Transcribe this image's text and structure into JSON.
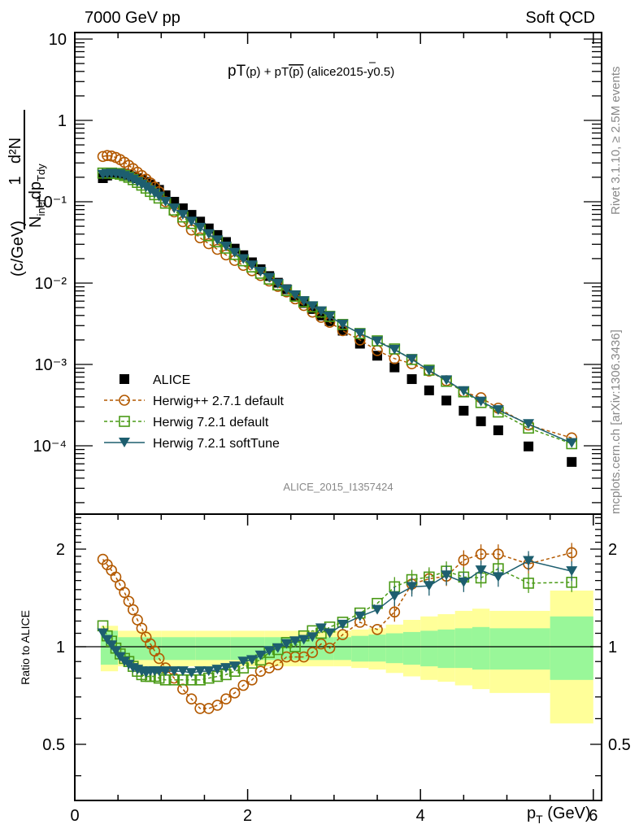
{
  "header": {
    "left": "7000 GeV pp",
    "right": "Soft QCD"
  },
  "side_labels": {
    "rivet": "Rivet 3.1.10, ≥ 2.5M events",
    "mcplots": "mcplots.cern.ch [arXiv:1306.3436]"
  },
  "chart_data": [
    {
      "type": "scatter",
      "panel": "main",
      "title": "pT(p) + pT(p̅) (alice2015-y0.5)",
      "title_parts": {
        "a": "pT",
        "b": "(p)",
        "c": " + pT",
        "d": "(p)",
        "e": " (alice2015-y0.5)"
      },
      "analysis_id": "ALICE_2015_I1357424",
      "xlabel": "p_T (GeV)",
      "ylabel": "1/N_inel d²N/dp_T dy (c/GeV)",
      "ylabel_parts": {
        "num1": "1",
        "num2": "d²N",
        "den1": "N",
        "den_sub": "inel",
        "den2": "dp",
        "den_sub2": "Tdy",
        "unit": "(c/GeV)"
      },
      "xscale": "linear",
      "yscale": "log",
      "xlim": [
        0,
        6.1
      ],
      "ylim": [
        2e-05,
        13
      ],
      "x_ticks": [
        0,
        2,
        4,
        6
      ],
      "x_tick_labels": [
        "0",
        "2",
        "4",
        "6"
      ],
      "y_ticks": [
        10,
        1,
        0.1,
        0.01,
        0.001,
        0.0001
      ],
      "y_tick_labels": [
        "10",
        "1",
        "10⁻¹",
        "10⁻²",
        "10⁻³",
        "10⁻⁴"
      ],
      "legend_position": "bottom-left",
      "x": [
        0.325,
        0.375,
        0.425,
        0.475,
        0.525,
        0.575,
        0.625,
        0.675,
        0.725,
        0.775,
        0.825,
        0.875,
        0.925,
        0.975,
        1.05,
        1.15,
        1.25,
        1.35,
        1.45,
        1.55,
        1.65,
        1.75,
        1.85,
        1.95,
        2.05,
        2.15,
        2.25,
        2.35,
        2.45,
        2.55,
        2.65,
        2.75,
        2.85,
        2.95,
        3.1,
        3.3,
        3.5,
        3.7,
        3.9,
        4.1,
        4.3,
        4.5,
        4.7,
        4.9,
        5.25,
        5.75
      ],
      "series": [
        {
          "name": "ALICE",
          "style": "black filled square, no line",
          "color": "#000000",
          "values": [
            0.195,
            0.21,
            0.22,
            0.225,
            0.225,
            0.222,
            0.215,
            0.205,
            0.195,
            0.185,
            0.175,
            0.163,
            0.152,
            0.14,
            0.12,
            0.1,
            0.083,
            0.069,
            0.057,
            0.047,
            0.039,
            0.032,
            0.0265,
            0.022,
            0.018,
            0.0148,
            0.0122,
            0.0101,
            0.0084,
            0.0069,
            0.0057,
            0.0048,
            0.004,
            0.0034,
            0.0026,
            0.0018,
            0.00128,
            0.00092,
            0.00066,
            0.00048,
            0.00036,
            0.00027,
            0.0002,
            0.000155,
            9.82e-05,
            6.33e-05
          ]
        },
        {
          "name": "Herwig++ 2.7.1 default",
          "style": "orange open circle, dashed line",
          "color": "#b35900",
          "values": [
            0.36,
            0.37,
            0.365,
            0.35,
            0.33,
            0.305,
            0.28,
            0.255,
            0.23,
            0.21,
            0.19,
            0.17,
            0.151,
            0.133,
            0.1,
            0.075,
            0.057,
            0.045,
            0.036,
            0.0305,
            0.026,
            0.0222,
            0.019,
            0.0165,
            0.0142,
            0.0124,
            0.0106,
            0.0091,
            0.0078,
            0.0064,
            0.0053,
            0.0044,
            0.0038,
            0.0033,
            0.0026,
            0.002,
            0.00148,
            0.00118,
            0.00102,
            0.00083,
            0.00063,
            0.00046,
            0.00039,
            0.00029,
            0.00018,
            0.000125
          ]
        },
        {
          "name": "Herwig 7.2.1 default",
          "style": "green open square, dashed line",
          "color": "#4a9a16",
          "values": [
            0.225,
            0.225,
            0.225,
            0.222,
            0.218,
            0.21,
            0.2,
            0.187,
            0.173,
            0.16,
            0.147,
            0.134,
            0.122,
            0.111,
            0.096,
            0.079,
            0.065,
            0.054,
            0.045,
            0.0382,
            0.0322,
            0.0269,
            0.0225,
            0.0188,
            0.0158,
            0.0132,
            0.0112,
            0.0095,
            0.0081,
            0.0069,
            0.0059,
            0.0051,
            0.0044,
            0.0039,
            0.0031,
            0.0024,
            0.00195,
            0.00155,
            0.00115,
            0.00085,
            0.00062,
            0.00046,
            0.00034,
            0.00026,
            0.000165,
            0.000106
          ]
        },
        {
          "name": "Herwig 7.2.1 softTune",
          "style": "teal filled down-triangle, solid line",
          "color": "#1d5e6f",
          "values": [
            0.215,
            0.22,
            0.222,
            0.22,
            0.216,
            0.208,
            0.198,
            0.187,
            0.175,
            0.163,
            0.151,
            0.139,
            0.127,
            0.116,
            0.1,
            0.083,
            0.069,
            0.057,
            0.048,
            0.04,
            0.0336,
            0.0282,
            0.0236,
            0.0197,
            0.0165,
            0.0138,
            0.0116,
            0.0098,
            0.0083,
            0.0071,
            0.006,
            0.0052,
            0.0045,
            0.0039,
            0.0031,
            0.0024,
            0.00192,
            0.00152,
            0.00116,
            0.00084,
            0.00064,
            0.00047,
            0.00035,
            0.000275,
            0.000185,
            0.000108
          ]
        }
      ]
    },
    {
      "type": "scatter",
      "panel": "ratio",
      "ylabel": "Ratio to ALICE",
      "xscale": "linear",
      "yscale": "log",
      "xlim": [
        0,
        6.1
      ],
      "ylim": [
        0.4,
        2.6
      ],
      "y_ticks": [
        2,
        1,
        0.5
      ],
      "y_tick_labels": [
        "2",
        "1",
        "0.5"
      ],
      "reference_line": 1,
      "x": [
        0.325,
        0.375,
        0.425,
        0.475,
        0.525,
        0.575,
        0.625,
        0.675,
        0.725,
        0.775,
        0.825,
        0.875,
        0.925,
        0.975,
        1.05,
        1.15,
        1.25,
        1.35,
        1.45,
        1.55,
        1.65,
        1.75,
        1.85,
        1.95,
        2.05,
        2.15,
        2.25,
        2.35,
        2.45,
        2.55,
        2.65,
        2.75,
        2.85,
        2.95,
        3.1,
        3.3,
        3.5,
        3.7,
        3.9,
        4.1,
        4.3,
        4.5,
        4.7,
        4.9,
        5.25,
        5.75
      ],
      "bands": {
        "bin_edges": [
          0.3,
          0.5,
          1.0,
          1.4,
          1.8,
          2.2,
          2.6,
          3.0,
          3.2,
          3.4,
          3.6,
          3.8,
          4.0,
          4.2,
          4.4,
          4.6,
          4.8,
          5.0,
          5.5,
          6.0
        ],
        "stat_color": "#99f799",
        "total_color": "#ffff99",
        "stat_lo": [
          0.88,
          0.91,
          0.91,
          0.91,
          0.91,
          0.91,
          0.91,
          0.91,
          0.9,
          0.9,
          0.89,
          0.88,
          0.87,
          0.86,
          0.86,
          0.85,
          0.85,
          0.85,
          0.79
        ],
        "stat_hi": [
          1.12,
          1.07,
          1.07,
          1.07,
          1.07,
          1.07,
          1.07,
          1.07,
          1.08,
          1.09,
          1.1,
          1.11,
          1.12,
          1.13,
          1.14,
          1.15,
          1.14,
          1.14,
          1.24
        ],
        "total_lo": [
          0.84,
          0.87,
          0.87,
          0.87,
          0.87,
          0.87,
          0.87,
          0.87,
          0.86,
          0.85,
          0.83,
          0.81,
          0.79,
          0.78,
          0.76,
          0.74,
          0.72,
          0.72,
          0.58
        ],
        "total_hi": [
          1.16,
          1.12,
          1.12,
          1.12,
          1.12,
          1.12,
          1.12,
          1.12,
          1.13,
          1.14,
          1.17,
          1.21,
          1.24,
          1.26,
          1.29,
          1.31,
          1.29,
          1.29,
          1.49
        ]
      },
      "series": [
        {
          "name": "Herwig++ 2.7.1 default",
          "color": "#b35900",
          "values": [
            1.86,
            1.79,
            1.72,
            1.64,
            1.55,
            1.47,
            1.38,
            1.3,
            1.21,
            1.14,
            1.07,
            1.02,
            0.97,
            0.92,
            0.86,
            0.8,
            0.74,
            0.69,
            0.645,
            0.645,
            0.66,
            0.69,
            0.72,
            0.76,
            0.79,
            0.84,
            0.86,
            0.88,
            0.93,
            0.93,
            0.93,
            0.96,
            1.02,
            0.99,
            1.09,
            1.19,
            1.13,
            1.28,
            1.56,
            1.62,
            1.65,
            1.85,
            1.93,
            1.93,
            1.8,
            1.95
          ]
        },
        {
          "name": "Herwig 7.2.1 default",
          "color": "#4a9a16",
          "values": [
            1.16,
            1.08,
            1.04,
            0.99,
            0.95,
            0.92,
            0.9,
            0.87,
            0.84,
            0.82,
            0.81,
            0.81,
            0.81,
            0.8,
            0.79,
            0.79,
            0.79,
            0.79,
            0.79,
            0.8,
            0.81,
            0.82,
            0.84,
            0.86,
            0.89,
            0.91,
            0.96,
            0.98,
            1.03,
            1.0,
            1.08,
            1.12,
            1.1,
            1.15,
            1.19,
            1.27,
            1.36,
            1.53,
            1.61,
            1.64,
            1.71,
            1.64,
            1.63,
            1.74,
            1.57,
            1.58
          ]
        },
        {
          "name": "Herwig 7.2.1 softTune",
          "color": "#1d5e6f",
          "values": [
            1.1,
            1.05,
            1.01,
            0.97,
            0.93,
            0.9,
            0.88,
            0.86,
            0.85,
            0.84,
            0.83,
            0.84,
            0.84,
            0.84,
            0.84,
            0.84,
            0.84,
            0.83,
            0.84,
            0.84,
            0.85,
            0.86,
            0.87,
            0.9,
            0.91,
            0.94,
            0.97,
            0.99,
            1.02,
            1.04,
            1.05,
            1.07,
            1.14,
            1.1,
            1.17,
            1.24,
            1.3,
            1.43,
            1.53,
            1.54,
            1.66,
            1.58,
            1.72,
            1.64,
            1.84,
            1.71
          ]
        }
      ]
    }
  ]
}
